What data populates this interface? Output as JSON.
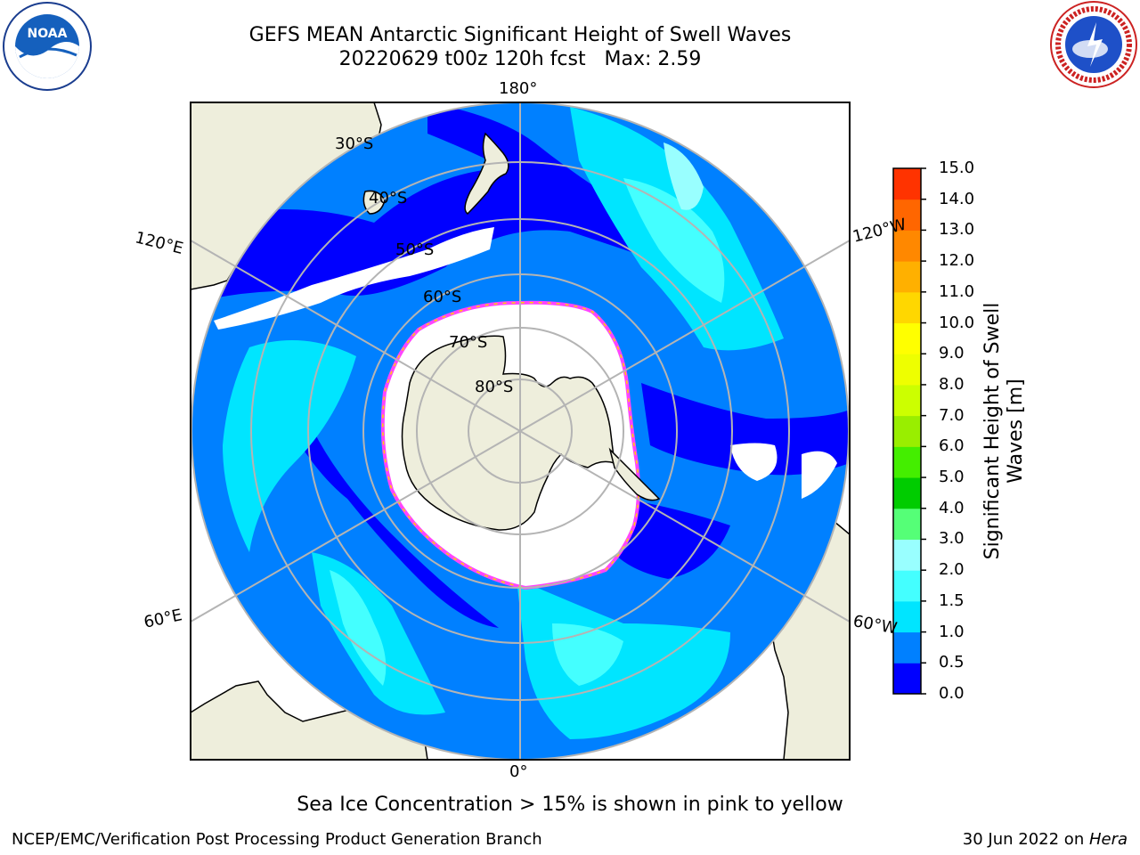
{
  "title": {
    "line1": "GEFS MEAN Antarctic Significant Height of Swell Waves",
    "line2": "20220629 t00z 120h fcst   Max: 2.59"
  },
  "logos": {
    "left": "noaa-emblem",
    "right": "nws-emblem"
  },
  "map": {
    "projection": "south-polar-stereographic",
    "longitude_labels": [
      "180°",
      "120°E",
      "120°W",
      "60°E",
      "60°W",
      "0°"
    ],
    "latitude_labels": [
      "30°S",
      "40°S",
      "50°S",
      "60°S",
      "70°S",
      "80°S"
    ],
    "colors": {
      "land": "#eeeedc",
      "sea_ice": "#ffffff",
      "ice_edge": "#ff44ff",
      "gridline": "#b4b4b4"
    }
  },
  "colorbar": {
    "label": "Significant Height of Swell Waves [m]",
    "ticks": [
      "15.0",
      "14.0",
      "13.0",
      "12.0",
      "11.0",
      "10.0",
      "9.0",
      "8.0",
      "7.0",
      "6.0",
      "5.0",
      "4.0",
      "3.0",
      "2.0",
      "1.5",
      "1.0",
      "0.5",
      "0.0"
    ],
    "colors": [
      "#0000ff",
      "#0080ff",
      "#00e5ff",
      "#44ffff",
      "#99ffff",
      "#55ff77",
      "#00cc00",
      "#44ee00",
      "#99ee00",
      "#ccff00",
      "#eeff00",
      "#ffff00",
      "#ffd700",
      "#ffb000",
      "#ff8800",
      "#ff6600",
      "#ff3300"
    ]
  },
  "note": "Sea Ice Concentration > 15% is shown in pink to yellow",
  "footer": {
    "left": "NCEP/EMC/Verification Post Processing Product Generation Branch",
    "date": "30 Jun 2022 on ",
    "machine": "Hera"
  }
}
